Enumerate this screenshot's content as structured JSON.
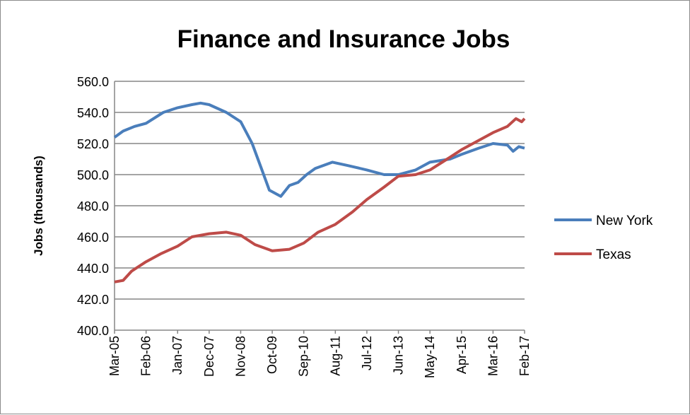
{
  "chart_data": {
    "type": "line",
    "title": "Finance and Insurance Jobs",
    "xlabel": "",
    "ylabel": "Jobs (thousands)",
    "ylim": [
      400,
      560
    ],
    "ytick_step": 20,
    "yticks": [
      "400.0",
      "420.0",
      "440.0",
      "460.0",
      "480.0",
      "500.0",
      "520.0",
      "540.0",
      "560.0"
    ],
    "xrange": [
      "2005-03",
      "2017-02"
    ],
    "xtick_labels": [
      "Mar-05",
      "Feb-06",
      "Jan-07",
      "Dec-07",
      "Nov-08",
      "Oct-09",
      "Sep-10",
      "Aug-11",
      "Jul-12",
      "Jun-13",
      "May-14",
      "Apr-15",
      "Mar-16",
      "Feb-17"
    ],
    "grid": "horizontal",
    "legend_position": "right",
    "series": [
      {
        "name": "New York",
        "color": "#4a7ebb",
        "points": [
          [
            "2005-03",
            524
          ],
          [
            "2005-06",
            528
          ],
          [
            "2005-10",
            531
          ],
          [
            "2006-02",
            533
          ],
          [
            "2006-08",
            540
          ],
          [
            "2007-01",
            543
          ],
          [
            "2007-06",
            545
          ],
          [
            "2007-09",
            546
          ],
          [
            "2007-12",
            545
          ],
          [
            "2008-06",
            540
          ],
          [
            "2008-11",
            534
          ],
          [
            "2009-03",
            520
          ],
          [
            "2009-06",
            505
          ],
          [
            "2009-09",
            490
          ],
          [
            "2010-01",
            486
          ],
          [
            "2010-04",
            493
          ],
          [
            "2010-07",
            495
          ],
          [
            "2010-10",
            500
          ],
          [
            "2011-01",
            504
          ],
          [
            "2011-07",
            508
          ],
          [
            "2011-12",
            506
          ],
          [
            "2012-07",
            503
          ],
          [
            "2013-01",
            500
          ],
          [
            "2013-06",
            500
          ],
          [
            "2013-12",
            503
          ],
          [
            "2014-05",
            508
          ],
          [
            "2014-12",
            510
          ],
          [
            "2015-04",
            513
          ],
          [
            "2015-10",
            517
          ],
          [
            "2016-03",
            520
          ],
          [
            "2016-08",
            519
          ],
          [
            "2016-10",
            515
          ],
          [
            "2016-12",
            518
          ],
          [
            "2017-02",
            517
          ]
        ]
      },
      {
        "name": "Texas",
        "color": "#be4b48",
        "points": [
          [
            "2005-03",
            431
          ],
          [
            "2005-06",
            432
          ],
          [
            "2005-09",
            438
          ],
          [
            "2006-02",
            444
          ],
          [
            "2006-07",
            449
          ],
          [
            "2007-01",
            454
          ],
          [
            "2007-06",
            460
          ],
          [
            "2007-12",
            462
          ],
          [
            "2008-06",
            463
          ],
          [
            "2008-11",
            461
          ],
          [
            "2009-04",
            455
          ],
          [
            "2009-10",
            451
          ],
          [
            "2010-04",
            452
          ],
          [
            "2010-09",
            456
          ],
          [
            "2011-02",
            463
          ],
          [
            "2011-08",
            468
          ],
          [
            "2012-02",
            476
          ],
          [
            "2012-07",
            484
          ],
          [
            "2013-01",
            492
          ],
          [
            "2013-06",
            499
          ],
          [
            "2013-12",
            500
          ],
          [
            "2014-05",
            503
          ],
          [
            "2014-11",
            510
          ],
          [
            "2015-04",
            516
          ],
          [
            "2015-10",
            522
          ],
          [
            "2016-03",
            527
          ],
          [
            "2016-08",
            531
          ],
          [
            "2016-11",
            536
          ],
          [
            "2017-01",
            534
          ],
          [
            "2017-02",
            536
          ]
        ]
      }
    ]
  }
}
